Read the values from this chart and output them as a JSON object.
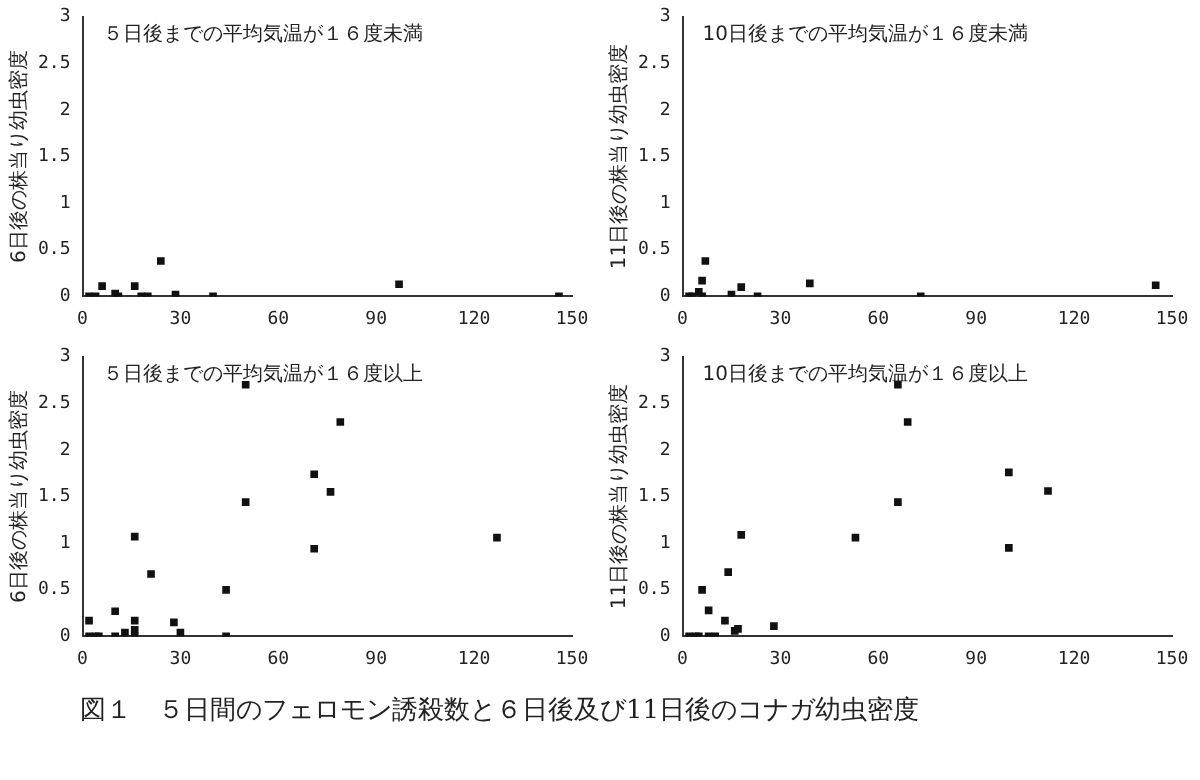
{
  "chart_data": [
    {
      "type": "scatter",
      "title": "５日後までの平均気温が１６度未満",
      "ylabel": "6日後の株当り幼虫密度",
      "color": "#111111",
      "marker": "square",
      "xlim": [
        0,
        150
      ],
      "xticks": [
        0,
        30,
        60,
        90,
        120,
        150
      ],
      "ylim": [
        0,
        3
      ],
      "yticks": [
        0,
        0.5,
        1,
        1.5,
        2,
        2.5,
        3
      ],
      "x": [
        2,
        4,
        6,
        10,
        11,
        16,
        18,
        20,
        24,
        28.5,
        40,
        97,
        146
      ],
      "values": [
        0,
        0,
        0.11,
        0.03,
        0,
        0.11,
        0,
        0,
        0.38,
        0.02,
        0,
        0.13,
        0
      ]
    },
    {
      "type": "scatter",
      "title": "10日後までの平均気温が１６度未満",
      "ylabel": "11日後の株当り幼虫密度",
      "color": "#111111",
      "marker": "square",
      "xlim": [
        0,
        150
      ],
      "xticks": [
        0,
        30,
        60,
        90,
        120,
        150
      ],
      "ylim": [
        0,
        3
      ],
      "yticks": [
        0,
        0.5,
        1,
        1.5,
        2,
        2.5,
        3
      ],
      "x": [
        2,
        3,
        4,
        5,
        6,
        6,
        7,
        15,
        18,
        23,
        39,
        73,
        145
      ],
      "values": [
        0,
        0,
        null,
        0.05,
        0.17,
        0,
        0.38,
        0.02,
        0.1,
        0,
        0.14,
        0,
        0.12
      ]
    },
    {
      "type": "scatter",
      "title": "５日後までの平均気温が１６度以上",
      "ylabel": "6日後の株当り幼虫密度",
      "color": "#111111",
      "marker": "square",
      "xlim": [
        0,
        150
      ],
      "xticks": [
        0,
        30,
        60,
        90,
        120,
        150
      ],
      "ylim": [
        0,
        3
      ],
      "yticks": [
        0,
        0.5,
        1,
        1.5,
        2,
        2.5,
        3
      ],
      "x": [
        2,
        2,
        4,
        5,
        10,
        10,
        13,
        16,
        16,
        16,
        16,
        21,
        28,
        30,
        44,
        44,
        50,
        50,
        71,
        71,
        76,
        79,
        127
      ],
      "values": [
        0.17,
        0,
        0,
        0,
        0.27,
        0,
        0.04,
        1.07,
        0.17,
        0.07,
        0,
        0.67,
        0.15,
        0.04,
        0.5,
        0,
        2.7,
        1.44,
        1.74,
        0.94,
        1.55,
        2.3,
        1.06
      ]
    },
    {
      "type": "scatter",
      "title": "10日後までの平均気温が１６度以上",
      "ylabel": "11日後の株当り幼虫密度",
      "color": "#111111",
      "marker": "square",
      "xlim": [
        0,
        150
      ],
      "xticks": [
        0,
        30,
        60,
        90,
        120,
        150
      ],
      "ylim": [
        0,
        3
      ],
      "yticks": [
        0,
        0.5,
        1,
        1.5,
        2,
        2.5,
        3
      ],
      "x": [
        2,
        4,
        5,
        6,
        8,
        8,
        10,
        13,
        14,
        16,
        17,
        18,
        28,
        53,
        66,
        66,
        69,
        100,
        100,
        112
      ],
      "values": [
        0,
        0,
        0,
        0.5,
        0.28,
        0,
        0,
        0.17,
        0.69,
        0.06,
        0.08,
        1.09,
        0.11,
        1.06,
        2.7,
        1.44,
        2.3,
        1.76,
        0.95,
        1.56
      ],
      "annotations": [
        "図１　５日間のフェロモン誘殺数と６日後及び11日後のコナガ幼虫密度"
      ]
    }
  ]
}
